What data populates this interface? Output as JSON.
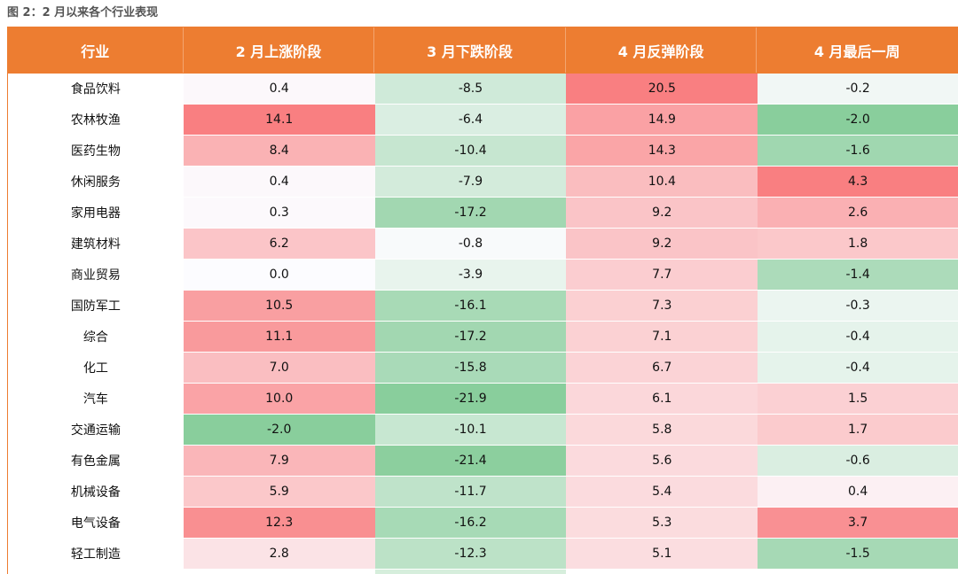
{
  "caption": "图 2：2 月以来各个行业表现",
  "headers": [
    "行业",
    "2 月上涨阶段",
    "3 月下跌阶段",
    "4 月反弹阶段",
    "4 月最后一周"
  ],
  "rows": [
    {
      "name": "食品饮料",
      "feb": "0.4",
      "mar": "-8.5",
      "apr": "20.5",
      "lastweek": "-0.2"
    },
    {
      "name": "农林牧渔",
      "feb": "14.1",
      "mar": "-6.4",
      "apr": "14.9",
      "lastweek": "-2.0"
    },
    {
      "name": "医药生物",
      "feb": "8.4",
      "mar": "-10.4",
      "apr": "14.3",
      "lastweek": "-1.6"
    },
    {
      "name": "休闲服务",
      "feb": "0.4",
      "mar": "-7.9",
      "apr": "10.4",
      "lastweek": "4.3"
    },
    {
      "name": "家用电器",
      "feb": "0.3",
      "mar": "-17.2",
      "apr": "9.2",
      "lastweek": "2.6"
    },
    {
      "name": "建筑材料",
      "feb": "6.2",
      "mar": "-0.8",
      "apr": "9.2",
      "lastweek": "1.8"
    },
    {
      "name": "商业贸易",
      "feb": "0.0",
      "mar": "-3.9",
      "apr": "7.7",
      "lastweek": "-1.4"
    },
    {
      "name": "国防军工",
      "feb": "10.5",
      "mar": "-16.1",
      "apr": "7.3",
      "lastweek": "-0.3"
    },
    {
      "name": "综合",
      "feb": "11.1",
      "mar": "-17.2",
      "apr": "7.1",
      "lastweek": "-0.4"
    },
    {
      "name": "化工",
      "feb": "7.0",
      "mar": "-15.8",
      "apr": "6.7",
      "lastweek": "-0.4"
    },
    {
      "name": "汽车",
      "feb": "10.0",
      "mar": "-21.9",
      "apr": "6.1",
      "lastweek": "1.5"
    },
    {
      "name": "交通运输",
      "feb": "-2.0",
      "mar": "-10.1",
      "apr": "5.8",
      "lastweek": "1.7"
    },
    {
      "name": "有色金属",
      "feb": "7.9",
      "mar": "-21.4",
      "apr": "5.6",
      "lastweek": "-0.6"
    },
    {
      "name": "机械设备",
      "feb": "5.9",
      "mar": "-11.7",
      "apr": "5.4",
      "lastweek": "0.4"
    },
    {
      "name": "电气设备",
      "feb": "12.3",
      "mar": "-16.2",
      "apr": "5.3",
      "lastweek": "3.7"
    },
    {
      "name": "轻工制造",
      "feb": "2.8",
      "mar": "-12.3",
      "apr": "5.1",
      "lastweek": "-1.5"
    }
  ],
  "colors": {
    "header_bg": "#ED7D31",
    "header_text": "#FFFFFF",
    "positive_max": "#F8696B",
    "neutral": "#FCFCFF",
    "negative_max": "#63BE7B"
  }
}
